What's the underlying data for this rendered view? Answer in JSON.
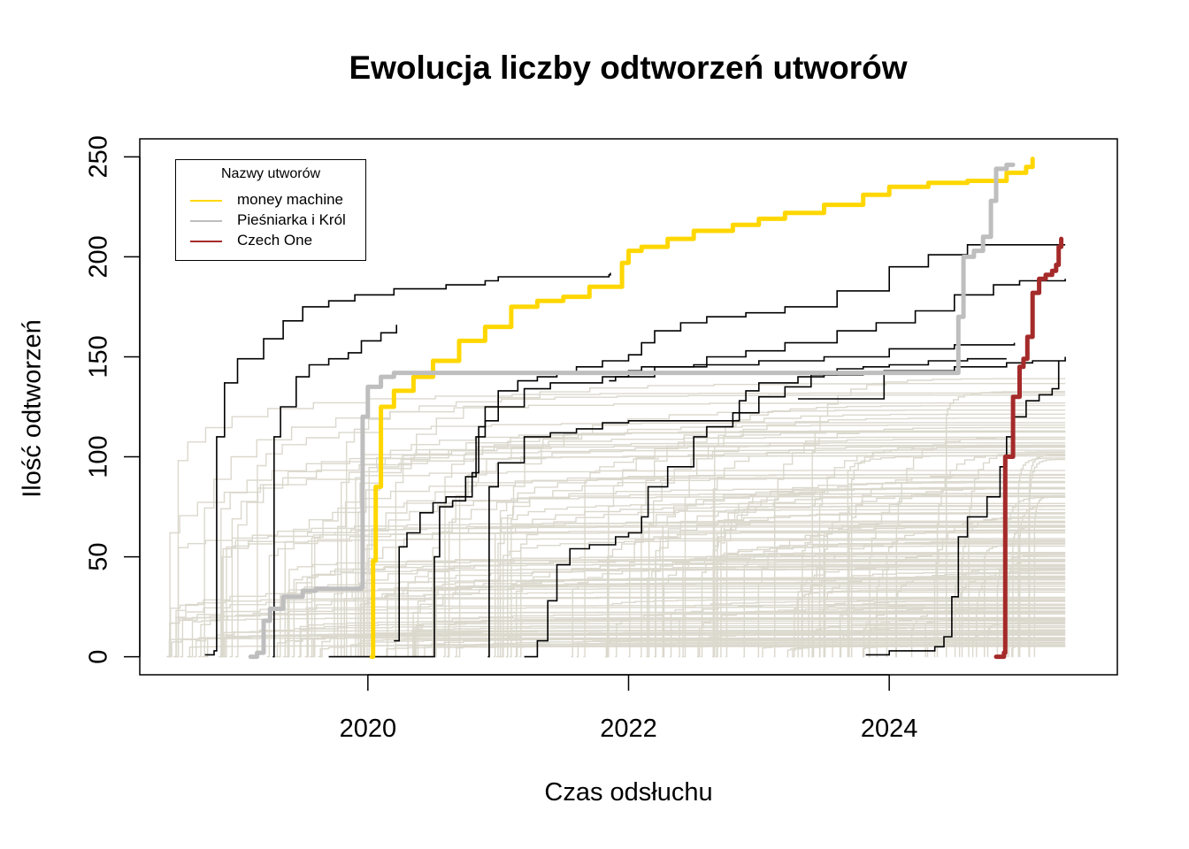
{
  "chart_data": {
    "type": "line",
    "title": "Ewolucja liczby odtworzeń utworów",
    "xlabel": "Czas odsłuchu",
    "ylabel": "Ilość odtworzeń",
    "xlim": [
      2018.25,
      2025.75
    ],
    "ylim": [
      -9,
      259
    ],
    "x_ticks": [
      2020,
      2022,
      2024
    ],
    "x_tick_labels": [
      "2020",
      "2022",
      "2024"
    ],
    "y_ticks": [
      0,
      50,
      100,
      150,
      200,
      250
    ],
    "y_tick_labels": [
      "0",
      "50",
      "100",
      "150",
      "200",
      "250"
    ],
    "grid": false,
    "legend": {
      "title": "Nazwy utworów",
      "position": "top-left",
      "items": [
        {
          "label": "money machine",
          "color": "#ffd700"
        },
        {
          "label": "Pieśniarka i Król",
          "color": "#bebebe"
        },
        {
          "label": "Czech One",
          "color": "#a52a2a"
        }
      ]
    },
    "background_series_color": "#dbd8cd",
    "highlight_series": [
      {
        "name": "money machine",
        "color": "#ffd700",
        "points": [
          [
            2020.03,
            0
          ],
          [
            2020.04,
            48
          ],
          [
            2020.06,
            85
          ],
          [
            2020.1,
            125
          ],
          [
            2020.2,
            133
          ],
          [
            2020.35,
            140
          ],
          [
            2020.5,
            148
          ],
          [
            2020.7,
            158
          ],
          [
            2020.9,
            165
          ],
          [
            2021.1,
            175
          ],
          [
            2021.3,
            178
          ],
          [
            2021.5,
            180
          ],
          [
            2021.7,
            185
          ],
          [
            2021.95,
            197
          ],
          [
            2022.0,
            203
          ],
          [
            2022.1,
            205
          ],
          [
            2022.3,
            209
          ],
          [
            2022.5,
            213
          ],
          [
            2022.8,
            216
          ],
          [
            2023.0,
            219
          ],
          [
            2023.2,
            222
          ],
          [
            2023.5,
            226
          ],
          [
            2023.8,
            231
          ],
          [
            2024.0,
            235
          ],
          [
            2024.3,
            237
          ],
          [
            2024.6,
            238
          ],
          [
            2024.9,
            242
          ],
          [
            2025.05,
            245
          ],
          [
            2025.1,
            249
          ]
        ]
      },
      {
        "name": "Pieśniarka i Król",
        "color": "#bebebe",
        "points": [
          [
            2019.1,
            0
          ],
          [
            2019.15,
            2
          ],
          [
            2019.2,
            18
          ],
          [
            2019.25,
            24
          ],
          [
            2019.35,
            30
          ],
          [
            2019.5,
            33
          ],
          [
            2019.6,
            34
          ],
          [
            2019.95,
            35
          ],
          [
            2019.96,
            120
          ],
          [
            2020.0,
            135
          ],
          [
            2020.1,
            140
          ],
          [
            2020.2,
            142
          ],
          [
            2024.5,
            142
          ],
          [
            2024.53,
            170
          ],
          [
            2024.57,
            200
          ],
          [
            2024.65,
            203
          ],
          [
            2024.72,
            210
          ],
          [
            2024.78,
            228
          ],
          [
            2024.82,
            244
          ],
          [
            2024.9,
            246
          ],
          [
            2024.95,
            246
          ]
        ]
      },
      {
        "name": "Czech One",
        "color": "#a52a2a",
        "points": [
          [
            2024.82,
            0
          ],
          [
            2024.88,
            2
          ],
          [
            2024.89,
            100
          ],
          [
            2024.95,
            130
          ],
          [
            2025.0,
            145
          ],
          [
            2025.03,
            149
          ],
          [
            2025.06,
            160
          ],
          [
            2025.1,
            182
          ],
          [
            2025.15,
            189
          ],
          [
            2025.2,
            191
          ],
          [
            2025.25,
            193
          ],
          [
            2025.28,
            196
          ],
          [
            2025.3,
            205
          ],
          [
            2025.32,
            209
          ]
        ]
      }
    ],
    "other_series": [
      {
        "color": "#000000",
        "points": [
          [
            2018.75,
            1
          ],
          [
            2018.82,
            3
          ],
          [
            2018.84,
            110
          ],
          [
            2018.9,
            137
          ],
          [
            2019.0,
            149
          ],
          [
            2019.2,
            159
          ],
          [
            2019.35,
            168
          ],
          [
            2019.5,
            175
          ],
          [
            2019.7,
            178
          ],
          [
            2019.9,
            181
          ],
          [
            2020.2,
            184
          ],
          [
            2020.6,
            186
          ],
          [
            2020.9,
            188
          ],
          [
            2021.0,
            190
          ],
          [
            2021.5,
            190
          ],
          [
            2021.85,
            191
          ],
          [
            2021.86,
            192
          ]
        ]
      },
      {
        "color": "#000000",
        "points": [
          [
            2019.27,
            0
          ],
          [
            2019.28,
            110
          ],
          [
            2019.33,
            125
          ],
          [
            2019.45,
            140
          ],
          [
            2019.55,
            146
          ],
          [
            2019.7,
            149
          ],
          [
            2019.85,
            152
          ],
          [
            2019.95,
            158
          ],
          [
            2020.1,
            162
          ],
          [
            2020.22,
            166
          ]
        ]
      },
      {
        "color": "#000000",
        "points": [
          [
            2019.7,
            0
          ],
          [
            2020.5,
            0
          ],
          [
            2020.51,
            50
          ],
          [
            2020.55,
            75
          ],
          [
            2020.65,
            78
          ],
          [
            2020.75,
            90
          ],
          [
            2020.83,
            110
          ],
          [
            2020.9,
            118
          ],
          [
            2021.0,
            125
          ],
          [
            2021.2,
            134
          ],
          [
            2021.4,
            137
          ],
          [
            2021.8,
            140
          ],
          [
            2022.2,
            145
          ],
          [
            2022.6,
            150
          ],
          [
            2022.9,
            153
          ],
          [
            2023.2,
            157
          ],
          [
            2023.6,
            163
          ],
          [
            2023.9,
            167
          ],
          [
            2024.2,
            173
          ],
          [
            2024.5,
            181
          ],
          [
            2024.8,
            186
          ],
          [
            2025.0,
            188
          ],
          [
            2025.35,
            189
          ]
        ]
      },
      {
        "color": "#000000",
        "points": [
          [
            2020.2,
            8
          ],
          [
            2020.23,
            8
          ],
          [
            2020.24,
            55
          ],
          [
            2020.3,
            62
          ],
          [
            2020.4,
            72
          ],
          [
            2020.5,
            77
          ],
          [
            2020.6,
            80
          ],
          [
            2020.8,
            92
          ],
          [
            2020.85,
            115
          ],
          [
            2020.9,
            125
          ],
          [
            2021.0,
            133
          ],
          [
            2021.15,
            138
          ],
          [
            2021.3,
            140
          ],
          [
            2021.45,
            142
          ],
          [
            2021.6,
            145
          ],
          [
            2021.8,
            148
          ],
          [
            2022.0,
            151
          ],
          [
            2022.1,
            157
          ],
          [
            2022.2,
            163
          ],
          [
            2022.4,
            167
          ],
          [
            2022.6,
            170
          ],
          [
            2022.9,
            172
          ],
          [
            2023.2,
            175
          ],
          [
            2023.6,
            183
          ],
          [
            2024.0,
            195
          ],
          [
            2024.3,
            201
          ],
          [
            2024.6,
            206
          ],
          [
            2025.35,
            206
          ]
        ]
      },
      {
        "color": "#000000",
        "points": [
          [
            2020.92,
            0
          ],
          [
            2020.93,
            85
          ],
          [
            2021.0,
            97
          ],
          [
            2021.2,
            110
          ],
          [
            2021.4,
            112
          ],
          [
            2021.6,
            114
          ],
          [
            2021.8,
            117
          ],
          [
            2022.0,
            118
          ],
          [
            2022.5,
            118
          ],
          [
            2022.85,
            128
          ],
          [
            2022.9,
            133
          ],
          [
            2023.0,
            137
          ],
          [
            2023.3,
            140
          ],
          [
            2023.5,
            141
          ],
          [
            2023.8,
            142
          ],
          [
            2024.0,
            143
          ],
          [
            2024.5,
            145
          ],
          [
            2024.9,
            147
          ],
          [
            2025.1,
            148
          ],
          [
            2025.3,
            148
          ],
          [
            2025.35,
            150
          ]
        ]
      },
      {
        "color": "#000000",
        "points": [
          [
            2021.2,
            0
          ],
          [
            2021.3,
            8
          ],
          [
            2021.38,
            28
          ],
          [
            2021.45,
            46
          ],
          [
            2021.55,
            54
          ],
          [
            2021.7,
            56
          ],
          [
            2021.9,
            60
          ],
          [
            2022.0,
            62
          ],
          [
            2022.1,
            70
          ],
          [
            2022.15,
            85
          ],
          [
            2022.3,
            95
          ],
          [
            2022.5,
            110
          ],
          [
            2022.6,
            115
          ],
          [
            2022.8,
            122
          ],
          [
            2023.0,
            130
          ],
          [
            2023.2,
            135
          ],
          [
            2023.4,
            141
          ],
          [
            2023.6,
            144
          ],
          [
            2023.8,
            145
          ],
          [
            2024.0,
            146
          ],
          [
            2024.3,
            148
          ],
          [
            2024.6,
            149
          ],
          [
            2024.9,
            149
          ]
        ]
      },
      {
        "color": "#000000",
        "points": [
          [
            2021.85,
            138
          ],
          [
            2021.9,
            140
          ],
          [
            2022.0,
            143
          ],
          [
            2022.1,
            145
          ],
          [
            2022.5,
            146
          ],
          [
            2023.0,
            148
          ],
          [
            2023.5,
            150
          ],
          [
            2024.0,
            154
          ],
          [
            2024.5,
            156
          ],
          [
            2024.96,
            157
          ]
        ]
      },
      {
        "color": "#000000",
        "points": [
          [
            2023.82,
            1
          ],
          [
            2024.0,
            3
          ],
          [
            2024.35,
            5
          ],
          [
            2024.42,
            10
          ],
          [
            2024.48,
            30
          ],
          [
            2024.53,
            60
          ],
          [
            2024.6,
            70
          ],
          [
            2024.75,
            80
          ],
          [
            2024.85,
            95
          ],
          [
            2024.9,
            110
          ],
          [
            2024.95,
            120
          ],
          [
            2025.05,
            128
          ],
          [
            2025.15,
            131
          ],
          [
            2025.25,
            134
          ],
          [
            2025.3,
            148
          ]
        ]
      },
      {
        "color": "#000000",
        "points": [
          [
            2023.3,
            129
          ],
          [
            2023.95,
            129
          ],
          [
            2023.96,
            143
          ],
          [
            2024.2,
            143
          ],
          [
            2024.5,
            144
          ]
        ]
      }
    ]
  }
}
